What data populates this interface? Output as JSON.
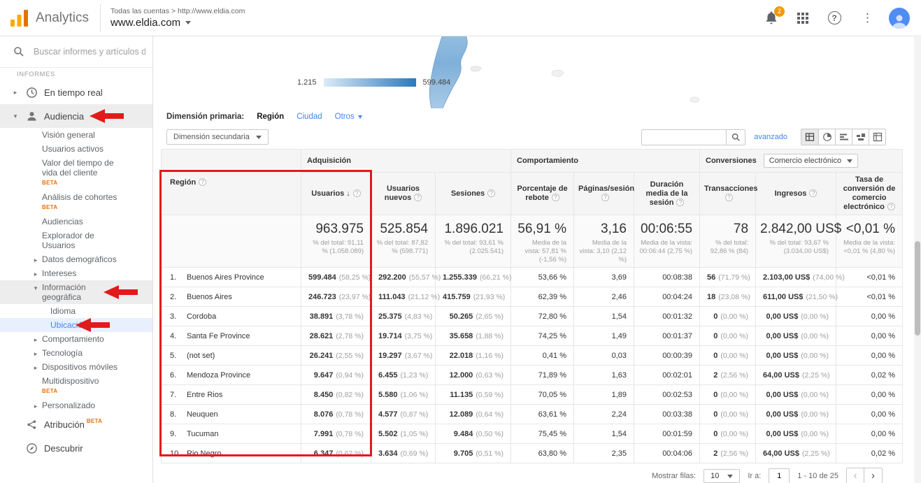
{
  "header": {
    "app_name": "Analytics",
    "breadcrumb": "Todas las cuentas > http://www.eldia.com",
    "account": "www.eldia.com",
    "notification_badge": "2"
  },
  "sidebar": {
    "search_placeholder": "Buscar informes y artículos de",
    "section": "INFORMES",
    "items": [
      {
        "label": "En tiempo real",
        "icon": "clock-icon",
        "level": 0,
        "expand": "collapsed"
      },
      {
        "label": "Audiencia",
        "icon": "person-icon",
        "level": 0,
        "expand": "expanded",
        "highlighted": true,
        "annotated": true
      },
      {
        "label": "Visión general",
        "level": 1
      },
      {
        "label": "Usuarios activos",
        "level": 1
      },
      {
        "label": "Valor del tiempo de vida del cliente",
        "beta": true,
        "level": 1
      },
      {
        "label": "Análisis de cohortes",
        "beta": true,
        "level": 1
      },
      {
        "label": "Audiencias",
        "level": 1
      },
      {
        "label": "Explorador de Usuarios",
        "level": 1
      },
      {
        "label": "Datos demográficos",
        "level": 1,
        "expand": "collapsed"
      },
      {
        "label": "Intereses",
        "level": 1,
        "expand": "collapsed"
      },
      {
        "label": "Información geográfica",
        "level": 1,
        "expand": "expanded",
        "highlighted": true,
        "annotated": true
      },
      {
        "label": "Idioma",
        "level": 2
      },
      {
        "label": "Ubicación",
        "level": 2,
        "selected": true,
        "annotated": true
      },
      {
        "label": "Comportamiento",
        "level": 1,
        "expand": "collapsed"
      },
      {
        "label": "Tecnología",
        "level": 1,
        "expand": "collapsed"
      },
      {
        "label": "Dispositivos móviles",
        "level": 1,
        "expand": "collapsed"
      },
      {
        "label": "Multidispositivo",
        "beta": true,
        "level": 1
      },
      {
        "label": "Personalizado",
        "level": 1,
        "expand": "collapsed"
      },
      {
        "label": "Atribución",
        "beta": true,
        "icon": "attribution-icon",
        "level": 0
      },
      {
        "label": "Descubrir",
        "icon": "compass-icon",
        "level": 0
      }
    ]
  },
  "map": {
    "legend_min": "1.215",
    "legend_max": "599.484"
  },
  "toolbar": {
    "primary_label": "Dimensión primaria:",
    "primary_options": [
      {
        "label": "Región",
        "selected": true
      },
      {
        "label": "Ciudad"
      },
      {
        "label": "Otros",
        "dropdown": true
      }
    ],
    "secondary_button": "Dimensión secundaria",
    "advanced_link": "avanzado"
  },
  "table": {
    "groups": [
      {
        "label": "Adquisición"
      },
      {
        "label": "Comportamiento"
      },
      {
        "label": "Conversiones",
        "selector": "Comercio electrónico"
      }
    ],
    "columns": [
      {
        "label": "Región"
      },
      {
        "label": "Usuarios",
        "sorted": "desc"
      },
      {
        "label": "Usuarios nuevos"
      },
      {
        "label": "Sesiones"
      },
      {
        "label": "Porcentaje de rebote"
      },
      {
        "label": "Páginas/sesión"
      },
      {
        "label": "Duración media de la sesión"
      },
      {
        "label": "Transacciones"
      },
      {
        "label": "Ingresos"
      },
      {
        "label": "Tasa de conversión de comercio electrónico"
      }
    ],
    "totals": [
      {
        "main": "963.975",
        "sub": "% del total: 91,11 % (1.058.089)"
      },
      {
        "main": "525.854",
        "sub": "% del total: 87,82 % (598.771)"
      },
      {
        "main": "1.896.021",
        "sub": "% del total: 93,61 % (2.025.541)"
      },
      {
        "main": "56,91 %",
        "sub": "Media de la vista: 57,81 % (-1,56 %)"
      },
      {
        "main": "3,16",
        "sub": "Media de la vista: 3,10 (2,12 %)"
      },
      {
        "main": "00:06:55",
        "sub": "Media de la vista: 00:06:44 (2,75 %)"
      },
      {
        "main": "78",
        "sub": "% del total: 92,86 % (84)"
      },
      {
        "main": "2.842,00 US$",
        "sub": "% del total: 93,67 % (3.034,00 US$)"
      },
      {
        "main": "<0,01 %",
        "sub": "Media de la vista: <0,01 % (4,80 %)"
      }
    ],
    "rows": [
      {
        "rank": "1.",
        "region": "Buenos Aires Province",
        "cells": [
          {
            "v": "599.484",
            "p": "(58,25 %)"
          },
          {
            "v": "292.200",
            "p": "(55,57 %)"
          },
          {
            "v": "1.255.339",
            "p": "(66,21 %)"
          },
          {
            "v": "53,66 %"
          },
          {
            "v": "3,69"
          },
          {
            "v": "00:08:38"
          },
          {
            "v": "56",
            "p": "(71,79 %)"
          },
          {
            "v": "2.103,00 US$",
            "p": "(74,00 %)"
          },
          {
            "v": "<0,01 %"
          }
        ]
      },
      {
        "rank": "2.",
        "region": "Buenos Aires",
        "cells": [
          {
            "v": "246.723",
            "p": "(23,97 %)"
          },
          {
            "v": "111.043",
            "p": "(21,12 %)"
          },
          {
            "v": "415.759",
            "p": "(21,93 %)"
          },
          {
            "v": "62,39 %"
          },
          {
            "v": "2,46"
          },
          {
            "v": "00:04:24"
          },
          {
            "v": "18",
            "p": "(23,08 %)"
          },
          {
            "v": "611,00 US$",
            "p": "(21,50 %)"
          },
          {
            "v": "<0,01 %"
          }
        ]
      },
      {
        "rank": "3.",
        "region": "Cordoba",
        "cells": [
          {
            "v": "38.891",
            "p": "(3,78 %)"
          },
          {
            "v": "25.375",
            "p": "(4,83 %)"
          },
          {
            "v": "50.265",
            "p": "(2,65 %)"
          },
          {
            "v": "72,80 %"
          },
          {
            "v": "1,54"
          },
          {
            "v": "00:01:32"
          },
          {
            "v": "0",
            "p": "(0,00 %)"
          },
          {
            "v": "0,00 US$",
            "p": "(0,00 %)"
          },
          {
            "v": "0,00 %"
          }
        ]
      },
      {
        "rank": "4.",
        "region": "Santa Fe Province",
        "cells": [
          {
            "v": "28.621",
            "p": "(2,78 %)"
          },
          {
            "v": "19.714",
            "p": "(3,75 %)"
          },
          {
            "v": "35.658",
            "p": "(1,88 %)"
          },
          {
            "v": "74,25 %"
          },
          {
            "v": "1,49"
          },
          {
            "v": "00:01:37"
          },
          {
            "v": "0",
            "p": "(0,00 %)"
          },
          {
            "v": "0,00 US$",
            "p": "(0,00 %)"
          },
          {
            "v": "0,00 %"
          }
        ]
      },
      {
        "rank": "5.",
        "region": "(not set)",
        "cells": [
          {
            "v": "26.241",
            "p": "(2,55 %)"
          },
          {
            "v": "19.297",
            "p": "(3,67 %)"
          },
          {
            "v": "22.018",
            "p": "(1,16 %)"
          },
          {
            "v": "0,41 %"
          },
          {
            "v": "0,03"
          },
          {
            "v": "00:00:39"
          },
          {
            "v": "0",
            "p": "(0,00 %)"
          },
          {
            "v": "0,00 US$",
            "p": "(0,00 %)"
          },
          {
            "v": "0,00 %"
          }
        ]
      },
      {
        "rank": "6.",
        "region": "Mendoza Province",
        "cells": [
          {
            "v": "9.647",
            "p": "(0,94 %)"
          },
          {
            "v": "6.455",
            "p": "(1,23 %)"
          },
          {
            "v": "12.000",
            "p": "(0,63 %)"
          },
          {
            "v": "71,89 %"
          },
          {
            "v": "1,63"
          },
          {
            "v": "00:02:01"
          },
          {
            "v": "2",
            "p": "(2,56 %)"
          },
          {
            "v": "64,00 US$",
            "p": "(2,25 %)"
          },
          {
            "v": "0,02 %"
          }
        ]
      },
      {
        "rank": "7.",
        "region": "Entre Rios",
        "cells": [
          {
            "v": "8.450",
            "p": "(0,82 %)"
          },
          {
            "v": "5.580",
            "p": "(1,06 %)"
          },
          {
            "v": "11.135",
            "p": "(0,59 %)"
          },
          {
            "v": "70,05 %"
          },
          {
            "v": "1,89"
          },
          {
            "v": "00:02:53"
          },
          {
            "v": "0",
            "p": "(0,00 %)"
          },
          {
            "v": "0,00 US$",
            "p": "(0,00 %)"
          },
          {
            "v": "0,00 %"
          }
        ]
      },
      {
        "rank": "8.",
        "region": "Neuquen",
        "cells": [
          {
            "v": "8.076",
            "p": "(0,78 %)"
          },
          {
            "v": "4.577",
            "p": "(0,87 %)"
          },
          {
            "v": "12.089",
            "p": "(0,64 %)"
          },
          {
            "v": "63,61 %"
          },
          {
            "v": "2,24"
          },
          {
            "v": "00:03:38"
          },
          {
            "v": "0",
            "p": "(0,00 %)"
          },
          {
            "v": "0,00 US$",
            "p": "(0,00 %)"
          },
          {
            "v": "0,00 %"
          }
        ]
      },
      {
        "rank": "9.",
        "region": "Tucuman",
        "cells": [
          {
            "v": "7.991",
            "p": "(0,78 %)"
          },
          {
            "v": "5.502",
            "p": "(1,05 %)"
          },
          {
            "v": "9.484",
            "p": "(0,50 %)"
          },
          {
            "v": "75,45 %"
          },
          {
            "v": "1,54"
          },
          {
            "v": "00:01:59"
          },
          {
            "v": "0",
            "p": "(0,00 %)"
          },
          {
            "v": "0,00 US$",
            "p": "(0,00 %)"
          },
          {
            "v": "0,00 %"
          }
        ]
      },
      {
        "rank": "10.",
        "region": "Rio Negro",
        "cells": [
          {
            "v": "6.347",
            "p": "(0,62 %)"
          },
          {
            "v": "3.634",
            "p": "(0,69 %)"
          },
          {
            "v": "9.705",
            "p": "(0,51 %)"
          },
          {
            "v": "63,80 %"
          },
          {
            "v": "2,35"
          },
          {
            "v": "00:04:06"
          },
          {
            "v": "2",
            "p": "(2,56 %)"
          },
          {
            "v": "64,00 US$",
            "p": "(2,25 %)"
          },
          {
            "v": "0,02 %"
          }
        ]
      }
    ]
  },
  "footer": {
    "rows_label": "Mostrar filas:",
    "rows_value": "10",
    "goto_label": "Ir a:",
    "goto_value": "1",
    "range": "1 - 10 de 25",
    "prev_icon": "‹",
    "next_icon": "›"
  }
}
